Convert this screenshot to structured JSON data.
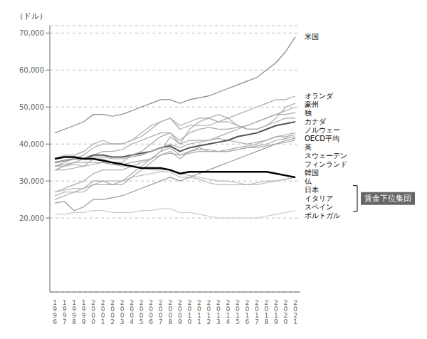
{
  "chart_data": {
    "type": "line",
    "ylabel": "（ドル）",
    "categories": [
      "1996",
      "1997",
      "1998",
      "1999",
      "2000",
      "2001",
      "2002",
      "2003",
      "2004",
      "2005",
      "2006",
      "2007",
      "2008",
      "2009",
      "2010",
      "2011",
      "2012",
      "2013",
      "2014",
      "2015",
      "2016",
      "2017",
      "2018",
      "2019",
      "2020",
      "2021"
    ],
    "series": [
      {
        "name": "ポルトガル",
        "color": "#cccccc",
        "values": [
          21000,
          21000,
          21500,
          21500,
          22000,
          22000,
          21500,
          21500,
          21500,
          22000,
          22000,
          22500,
          22500,
          21500,
          21500,
          21000,
          20500,
          20000,
          20000,
          20000,
          20000,
          20000,
          20500,
          21000,
          21500,
          22000
        ]
      },
      {
        "name": "スペイン",
        "color": "#bbbbbb",
        "values": [
          27000,
          27500,
          28000,
          28000,
          29000,
          30000,
          30000,
          30000,
          31000,
          31500,
          32000,
          32500,
          32500,
          31000,
          31000,
          30500,
          29500,
          29000,
          29000,
          29000,
          29000,
          29500,
          30000,
          30000,
          30500,
          31000
        ]
      },
      {
        "name": "イタリア",
        "color": "#bbbbbb",
        "values": [
          34000,
          34000,
          34500,
          34000,
          34500,
          35000,
          34500,
          34000,
          34000,
          33500,
          33000,
          33000,
          33000,
          32000,
          31500,
          31000,
          30500,
          30000,
          30000,
          29500,
          29000,
          29000,
          29500,
          30000,
          30500,
          31000
        ]
      },
      {
        "name": "韓国",
        "color": "#999999",
        "values": [
          24000,
          24500,
          22000,
          23000,
          25000,
          25000,
          25500,
          26000,
          27000,
          28000,
          29000,
          30000,
          31000,
          30000,
          31000,
          32000,
          33000,
          34000,
          35000,
          36000,
          37000,
          38000,
          39000,
          40000,
          41000,
          41500
        ]
      },
      {
        "name": "仏",
        "color": "#aaaaaa",
        "values": [
          34000,
          34500,
          35000,
          35000,
          35000,
          35000,
          34500,
          34500,
          35000,
          35500,
          36000,
          37000,
          37500,
          37000,
          37500,
          38000,
          38000,
          38000,
          38000,
          38500,
          39000,
          39000,
          39500,
          40000,
          40500,
          41000
        ]
      },
      {
        "name": "スウェーデン",
        "color": "#aaaaaa",
        "values": [
          25000,
          26000,
          27000,
          27000,
          29000,
          29000,
          29000,
          29000,
          31000,
          33000,
          35000,
          37000,
          38000,
          36000,
          38000,
          39000,
          38000,
          38000,
          38500,
          39000,
          39500,
          40000,
          41000,
          42000,
          42000,
          42500
        ]
      },
      {
        "name": "フィンランド",
        "color": "#aaaaaa",
        "values": [
          27000,
          28000,
          29000,
          30000,
          32000,
          33000,
          33000,
          33000,
          34000,
          35000,
          36000,
          38000,
          39000,
          37000,
          38000,
          38500,
          38500,
          38000,
          38000,
          38500,
          39000,
          39500,
          40000,
          41000,
          41500,
          42000
        ]
      },
      {
        "name": "英",
        "color": "#aaaaaa",
        "values": [
          33000,
          34000,
          35000,
          36000,
          37000,
          38000,
          38000,
          38500,
          40000,
          41000,
          42000,
          43000,
          43000,
          40000,
          41000,
          41000,
          41000,
          41500,
          41000,
          40500,
          40000,
          40500,
          41000,
          42000,
          42500,
          43000
        ]
      },
      {
        "name": "OECD平均",
        "color": "#555555",
        "values": [
          35000,
          35500,
          36000,
          36000,
          37000,
          37000,
          36500,
          36500,
          37000,
          37500,
          38000,
          39000,
          39500,
          38000,
          39000,
          39500,
          40000,
          40500,
          41000,
          42000,
          42500,
          43000,
          44000,
          45000,
          45500,
          46000
        ]
      },
      {
        "name": "ノルウェー",
        "color": "#aaaaaa",
        "values": [
          34000,
          35000,
          36000,
          37000,
          39000,
          40000,
          40000,
          40000,
          41000,
          43000,
          45000,
          46000,
          47000,
          45000,
          46000,
          47000,
          47000,
          46000,
          46000,
          45000,
          44000,
          44000,
          45000,
          46000,
          47000,
          47000
        ]
      },
      {
        "name": "カナダ",
        "color": "#aaaaaa",
        "values": [
          33000,
          33000,
          33500,
          34000,
          36000,
          36000,
          35000,
          35000,
          37000,
          38000,
          40000,
          42000,
          43000,
          41000,
          43000,
          44000,
          44500,
          44000,
          44000,
          44500,
          45000,
          46000,
          47000,
          48000,
          48000,
          48500
        ]
      },
      {
        "name": "豪州",
        "color": "#aaaaaa",
        "values": [
          26000,
          27000,
          27000,
          28000,
          30000,
          30000,
          29000,
          30000,
          32000,
          34000,
          36000,
          38000,
          42000,
          40000,
          44000,
          46000,
          47000,
          48000,
          47000,
          45000,
          44000,
          44000,
          45000,
          47000,
          50000,
          51000
        ]
      },
      {
        "name": "独",
        "color": "#aaaaaa",
        "values": [
          35000,
          35500,
          36000,
          36000,
          36500,
          36500,
          36000,
          36000,
          36500,
          37000,
          38000,
          39000,
          40000,
          39000,
          40000,
          40500,
          41000,
          42000,
          43000,
          44000,
          45000,
          46000,
          47000,
          48000,
          49000,
          50000
        ]
      },
      {
        "name": "オランダ",
        "color": "#aaaaaa",
        "values": [
          36000,
          37000,
          37000,
          38000,
          40000,
          41000,
          40000,
          40000,
          41000,
          42000,
          44000,
          46000,
          47000,
          44000,
          45000,
          45000,
          45000,
          46000,
          47000,
          48000,
          49000,
          50000,
          51000,
          52000,
          52000,
          53000
        ]
      },
      {
        "name": "米国",
        "color": "#888888",
        "values": [
          43000,
          44000,
          45000,
          46000,
          48000,
          48000,
          47500,
          48000,
          49000,
          50000,
          51000,
          52000,
          52000,
          51000,
          52000,
          52500,
          53000,
          54000,
          55000,
          56000,
          57000,
          58000,
          60000,
          62000,
          65000,
          69000
        ]
      },
      {
        "name": "日本",
        "color": "#000000",
        "values": [
          36000,
          36500,
          36500,
          36000,
          36000,
          35500,
          35000,
          34500,
          34000,
          33500,
          33500,
          33500,
          33000,
          32000,
          32500,
          32500,
          32500,
          32500,
          32500,
          32500,
          32500,
          32500,
          32500,
          32000,
          31500,
          31000
        ]
      }
    ],
    "ylim": [
      0,
      72000
    ],
    "yticks": [
      {
        "value": 20000,
        "label": "20,000"
      },
      {
        "value": 30000,
        "label": "30,000"
      },
      {
        "value": 40000,
        "label": "40,000"
      },
      {
        "value": 50000,
        "label": "50,000"
      },
      {
        "value": 60000,
        "label": "60,000"
      },
      {
        "value": 70000,
        "label": "70,000"
      }
    ],
    "grid": true,
    "annotations": [
      {
        "text": "賃金下位集団",
        "series": [
          "イタリア",
          "日本",
          "スペイン"
        ],
        "color": "#666666"
      }
    ]
  }
}
